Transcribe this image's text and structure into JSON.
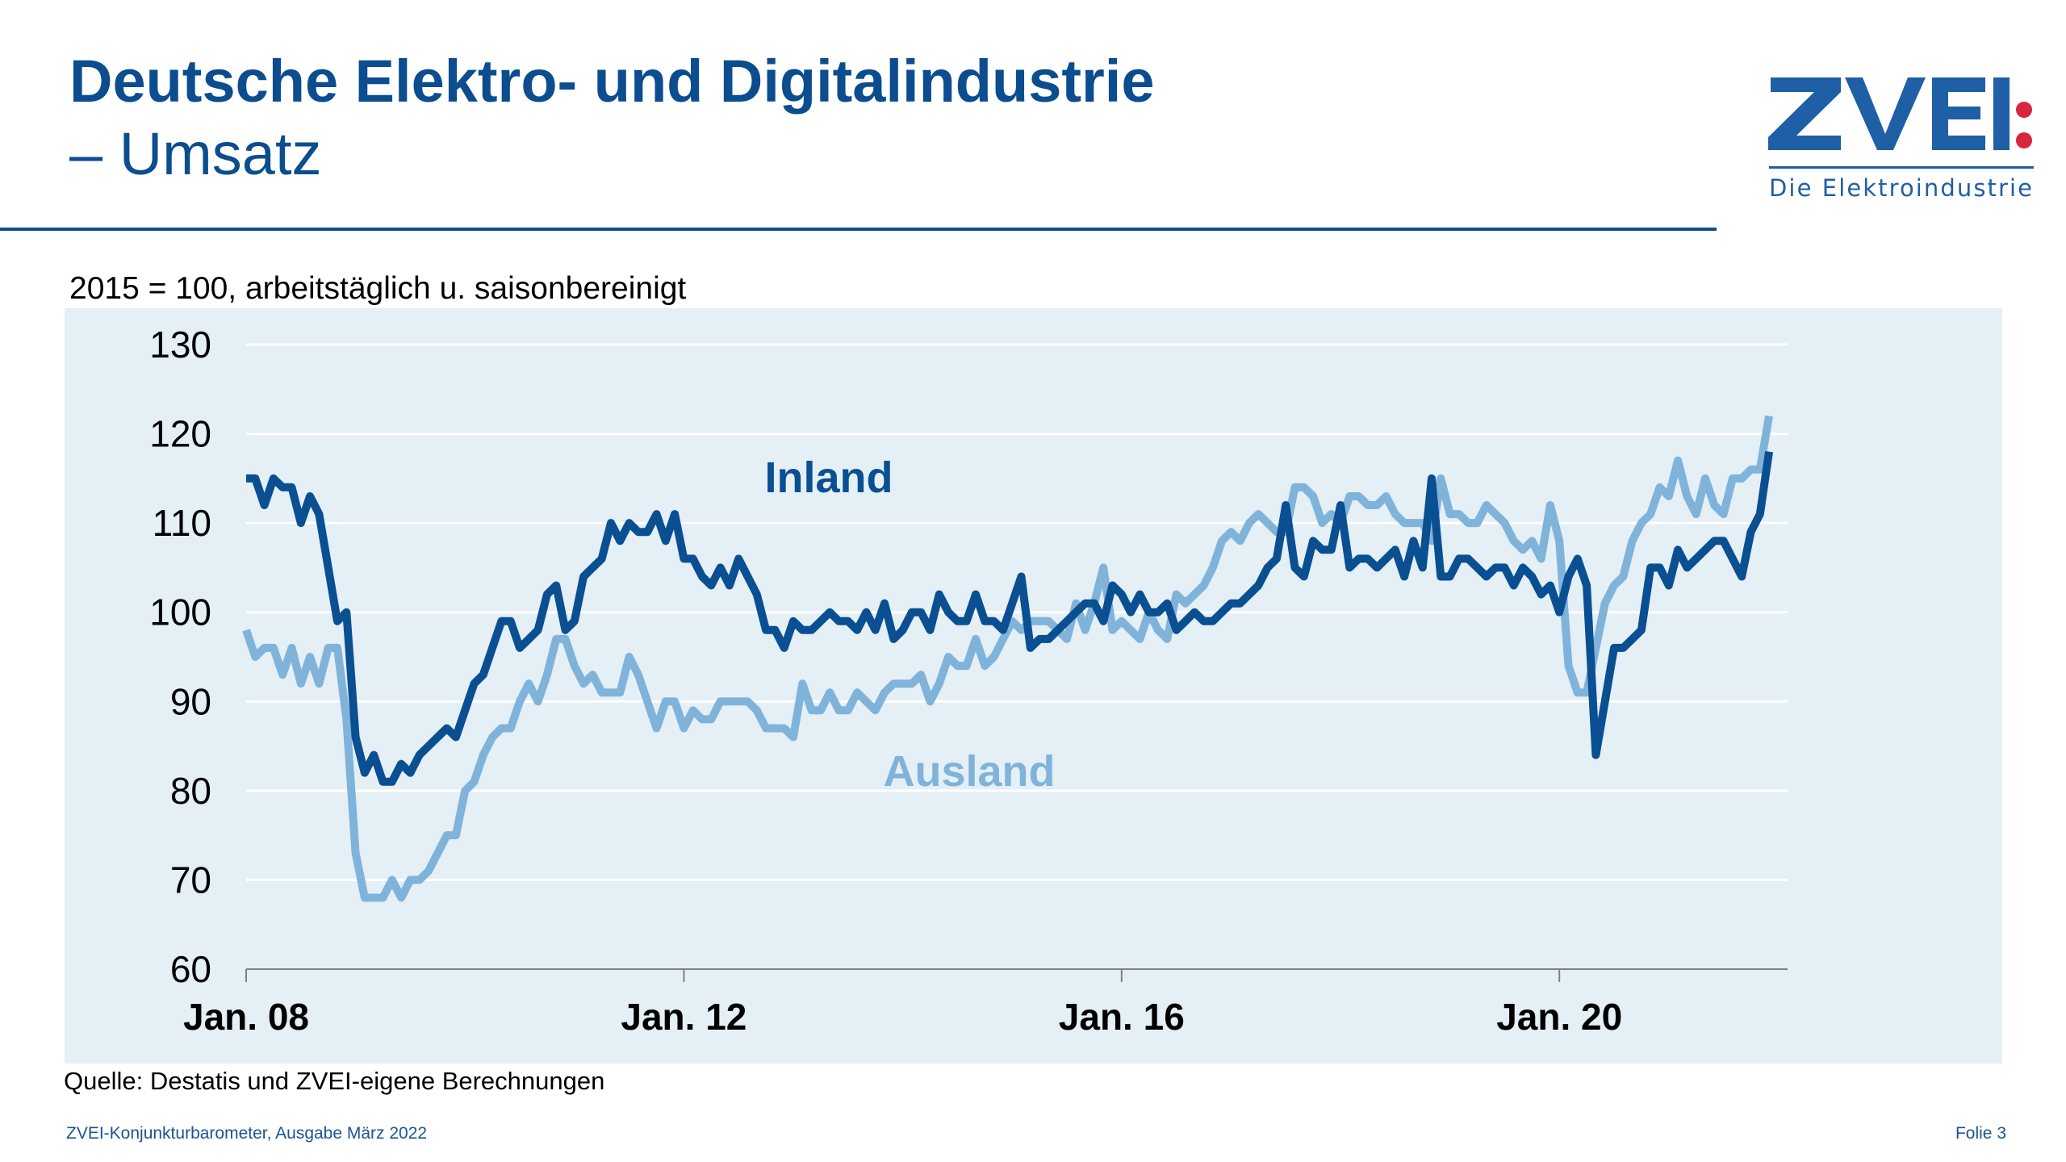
{
  "header": {
    "title": "Deutsche Elektro- und Digitalindustrie",
    "subtitle": "– Umsatz",
    "logo_text": "ZVEI:",
    "logo_tagline": "Die Elektroindustrie"
  },
  "colors": {
    "brand": "#0b4d8f",
    "inland": "#0a4f91",
    "ausland": "#80b3d9",
    "panel": "#e4eff6",
    "logo_dots": "#d7263d"
  },
  "chart_data": {
    "type": "line",
    "title": "",
    "note": "2015 = 100, arbeitstäglich u. saisonbereinigt",
    "x_start": "2008-01",
    "x_frequency": "monthly",
    "x_ticks": [
      "Jan. 08",
      "Jan. 12",
      "Jan. 16",
      "Jan. 20"
    ],
    "y_ticks": [
      60,
      70,
      80,
      90,
      100,
      110,
      120,
      130
    ],
    "ylim": [
      60,
      130
    ],
    "grid": true,
    "series": [
      {
        "name": "Inland",
        "color": "#0a4f91",
        "values": [
          115,
          115,
          112,
          115,
          114,
          114,
          110,
          113,
          111,
          105,
          99,
          100,
          86,
          82,
          84,
          81,
          81,
          83,
          82,
          84,
          85,
          86,
          87,
          86,
          89,
          92,
          93,
          96,
          99,
          99,
          96,
          97,
          98,
          102,
          103,
          98,
          99,
          104,
          105,
          106,
          110,
          108,
          110,
          109,
          109,
          111,
          108,
          111,
          106,
          106,
          104,
          103,
          105,
          103,
          106,
          104,
          102,
          98,
          98,
          96,
          99,
          98,
          98,
          99,
          100,
          99,
          99,
          98,
          100,
          98,
          101,
          97,
          98,
          100,
          100,
          98,
          102,
          100,
          99,
          99,
          102,
          99,
          99,
          98,
          101,
          104,
          96,
          97,
          97,
          98,
          99,
          100,
          101,
          101,
          99,
          103,
          102,
          100,
          102,
          100,
          100,
          101,
          98,
          99,
          100,
          99,
          99,
          100,
          101,
          101,
          102,
          103,
          105,
          106,
          112,
          105,
          104,
          108,
          107,
          107,
          112,
          105,
          106,
          106,
          105,
          106,
          107,
          104,
          108,
          105,
          115,
          104,
          104,
          106,
          106,
          105,
          104,
          105,
          105,
          103,
          105,
          104,
          102,
          103,
          100,
          104,
          106,
          103,
          84,
          90,
          96,
          96,
          97,
          98,
          105,
          105,
          103,
          107,
          105,
          106,
          107,
          108,
          108,
          106,
          104,
          109,
          111,
          118
        ]
      },
      {
        "name": "Ausland",
        "color": "#80b3d9",
        "values": [
          98,
          95,
          96,
          96,
          93,
          96,
          92,
          95,
          92,
          96,
          96,
          88,
          73,
          68,
          68,
          68,
          70,
          68,
          70,
          70,
          71,
          73,
          75,
          75,
          80,
          81,
          84,
          86,
          87,
          87,
          90,
          92,
          90,
          93,
          97,
          97,
          94,
          92,
          93,
          91,
          91,
          91,
          95,
          93,
          90,
          87,
          90,
          90,
          87,
          89,
          88,
          88,
          90,
          90,
          90,
          90,
          89,
          87,
          87,
          87,
          86,
          92,
          89,
          89,
          91,
          89,
          89,
          91,
          90,
          89,
          91,
          92,
          92,
          92,
          93,
          90,
          92,
          95,
          94,
          94,
          97,
          94,
          95,
          97,
          99,
          98,
          99,
          99,
          99,
          98,
          97,
          101,
          98,
          101,
          105,
          98,
          99,
          98,
          97,
          100,
          98,
          97,
          102,
          101,
          102,
          103,
          105,
          108,
          109,
          108,
          110,
          111,
          110,
          109,
          109,
          114,
          114,
          113,
          110,
          111,
          110,
          113,
          113,
          112,
          112,
          113,
          111,
          110,
          110,
          110,
          108,
          115,
          111,
          111,
          110,
          110,
          112,
          111,
          110,
          108,
          107,
          108,
          106,
          112,
          108,
          94,
          91,
          91,
          96,
          101,
          103,
          104,
          108,
          110,
          111,
          114,
          113,
          117,
          113,
          111,
          115,
          112,
          111,
          115,
          115,
          116,
          116,
          122
        ]
      }
    ]
  },
  "source": "Quelle: Destatis und ZVEI-eigene Berechnungen",
  "footer": {
    "left": "ZVEI-Konjunkturbarometer, Ausgabe März 2022",
    "right": "Folie 3"
  }
}
